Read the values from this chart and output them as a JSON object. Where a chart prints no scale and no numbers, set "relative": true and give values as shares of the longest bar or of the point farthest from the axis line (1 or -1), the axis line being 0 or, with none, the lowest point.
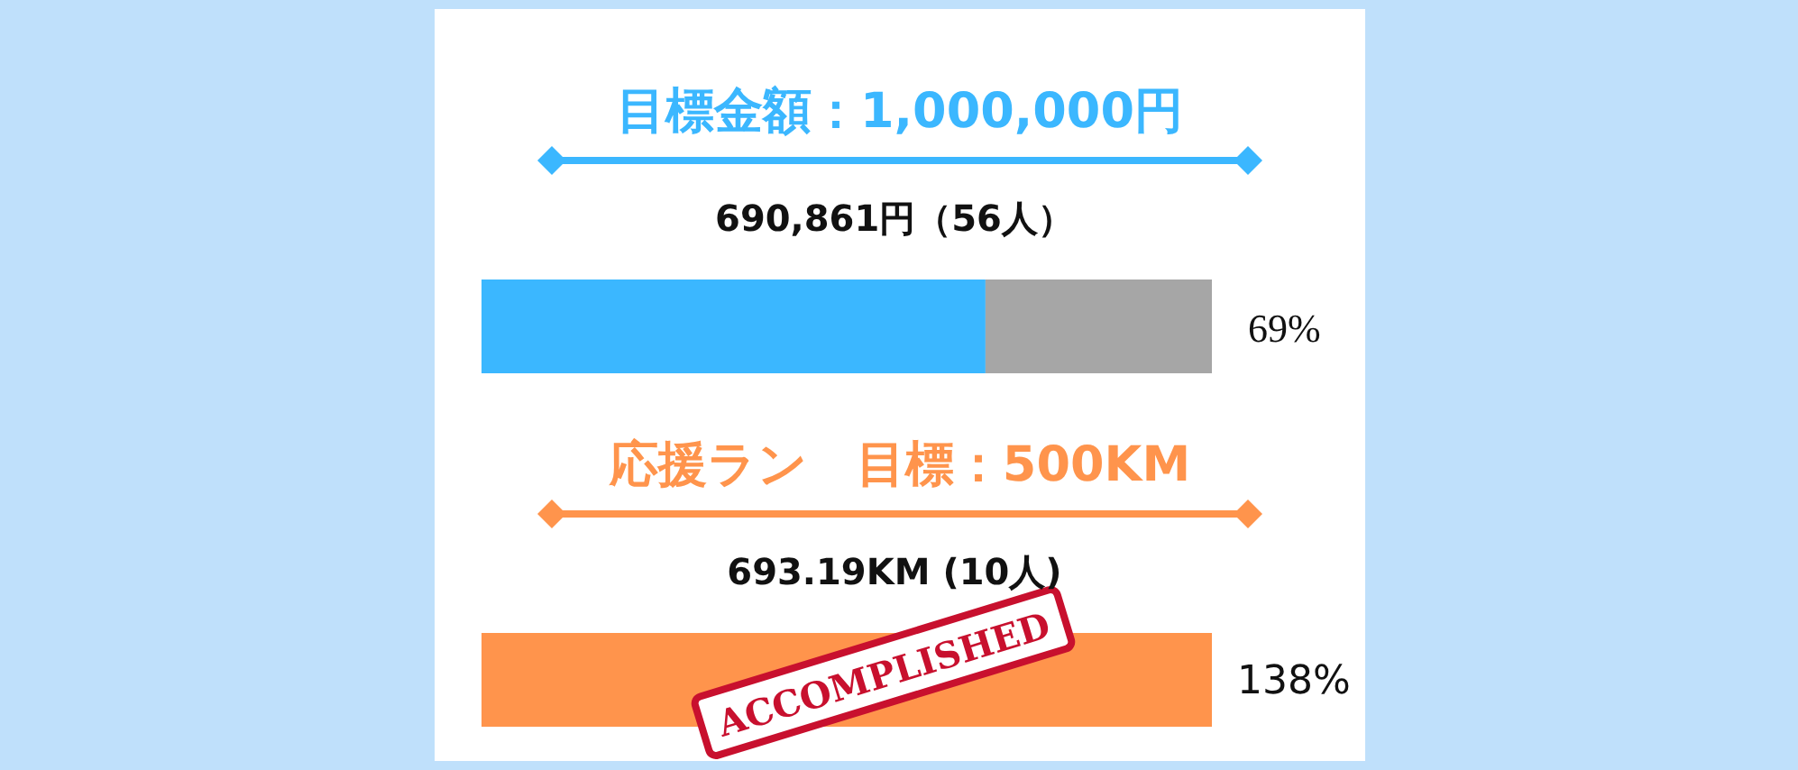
{
  "chart_data": [
    {
      "type": "bar",
      "orientation": "horizontal",
      "stacked": true,
      "relative": true,
      "title": "目標金額：1,000,000円",
      "subtitle": "690,861円（56人）",
      "categories": [
        null
      ],
      "series": [
        {
          "color": "#3bb7ff",
          "values": [
            0.69
          ]
        },
        {
          "color": "#a6a6a6",
          "values": [
            0.31
          ]
        }
      ],
      "annotations": [
        "69%"
      ]
    },
    {
      "type": "bar",
      "orientation": "horizontal",
      "title": "応援ラン　目標：500KM",
      "subtitle": "693.19KM (10人)",
      "categories": [
        null
      ],
      "series": [
        {
          "color": "#ff944c",
          "values": [
            138
          ],
          "value_labels": [
            "138%"
          ]
        }
      ],
      "annotations": [
        "ACCOMPLISHED"
      ]
    }
  ]
}
